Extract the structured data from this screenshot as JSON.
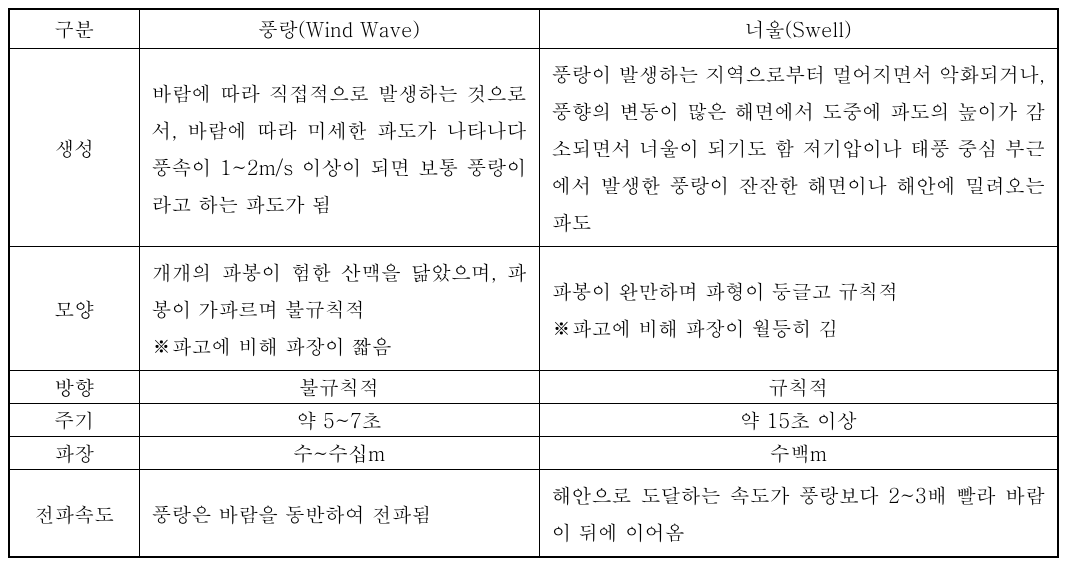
{
  "table": {
    "headers": {
      "category": "구분",
      "windwave": "풍랑(Wind Wave)",
      "swell": "너울(Swell)"
    },
    "rows": {
      "generation": {
        "label": "생성",
        "windwave": "바람에 따라 직접적으로 발생하는 것으로서, 바람에 따라 미세한 파도가 나타나다 풍속이 1~2m/s 이상이 되면 보통 풍랑이라고 하는 파도가 됨",
        "swell": "풍랑이 발생하는 지역으로부터 멀어지면서 악화되거나, 풍향의 변동이 많은 해면에서 도중에 파도의 높이가 감소되면서 너울이 되기도 함 저기압이나 태풍 중심 부근에서 발생한 풍랑이 잔잔한 해면이나 해안에 밀려오는 파도"
      },
      "shape": {
        "label": "모양",
        "windwave_line1": "개개의 파봉이 험한 산맥을 닮았으며, 파봉이 가파르며 불규칙적",
        "windwave_line2": "※파고에 비해 파장이 짧음",
        "swell_line1": "파봉이 완만하며 파형이 둥글고 규칙적",
        "swell_line2": "※파고에 비해 파장이 월등히 김"
      },
      "direction": {
        "label": "방향",
        "windwave": "불규칙적",
        "swell": "규칙적"
      },
      "period": {
        "label": "주기",
        "windwave": "약 5~7초",
        "swell": "약 15초 이상"
      },
      "wavelength": {
        "label": "파장",
        "windwave": "수~수십m",
        "swell": "수백m"
      },
      "propagation": {
        "label": "전파속도",
        "windwave": "풍랑은 바람을 동반하여 전파됨",
        "swell": "해안으로 도달하는 속도가 풍랑보다 2~3배 빨라 바람이 뒤에 이어옴"
      }
    }
  }
}
